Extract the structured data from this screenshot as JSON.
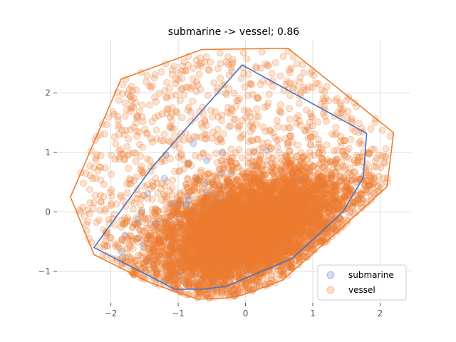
{
  "chart_data": {
    "type": "scatter",
    "title": "submarine -> vessel; 0.86",
    "xlabel": "",
    "ylabel": "",
    "xlim": [
      -2.8,
      2.45
    ],
    "ylim": [
      -1.53,
      2.88
    ],
    "x_ticks": [
      -2,
      -1,
      0,
      1,
      2
    ],
    "y_ticks": [
      -1,
      0,
      1,
      2
    ],
    "x_tick_labels": [
      "−2",
      "−1",
      "0",
      "1",
      "2"
    ],
    "y_tick_labels": [
      "−1",
      "0",
      "1",
      "2"
    ],
    "grid": true,
    "legend_position": "bottom-right",
    "series": [
      {
        "name": "submarine",
        "color": "#4472c4",
        "marker": "circle",
        "approx_count": 200,
        "hull": [
          [
            -0.05,
            2.47
          ],
          [
            1.8,
            1.32
          ],
          [
            1.75,
            0.58
          ],
          [
            1.45,
            0.0
          ],
          [
            0.7,
            -0.78
          ],
          [
            -0.28,
            -1.25
          ],
          [
            -0.62,
            -1.3
          ],
          [
            -1.05,
            -1.3
          ],
          [
            -2.25,
            -0.6
          ],
          [
            -1.38,
            0.76
          ],
          [
            -0.05,
            2.47
          ]
        ]
      },
      {
        "name": "vessel",
        "color": "#ed7d31",
        "marker": "circle",
        "approx_count": 8000,
        "hull": [
          [
            -2.6,
            0.25
          ],
          [
            -1.85,
            2.23
          ],
          [
            -0.65,
            2.73
          ],
          [
            0.63,
            2.75
          ],
          [
            2.2,
            1.33
          ],
          [
            2.1,
            0.42
          ],
          [
            1.35,
            -0.35
          ],
          [
            0.55,
            -1.15
          ],
          [
            -0.05,
            -1.4
          ],
          [
            -0.3,
            -1.45
          ],
          [
            -0.7,
            -1.47
          ],
          [
            -1.4,
            -1.2
          ],
          [
            -2.25,
            -0.72
          ],
          [
            -2.6,
            0.25
          ]
        ]
      }
    ]
  }
}
